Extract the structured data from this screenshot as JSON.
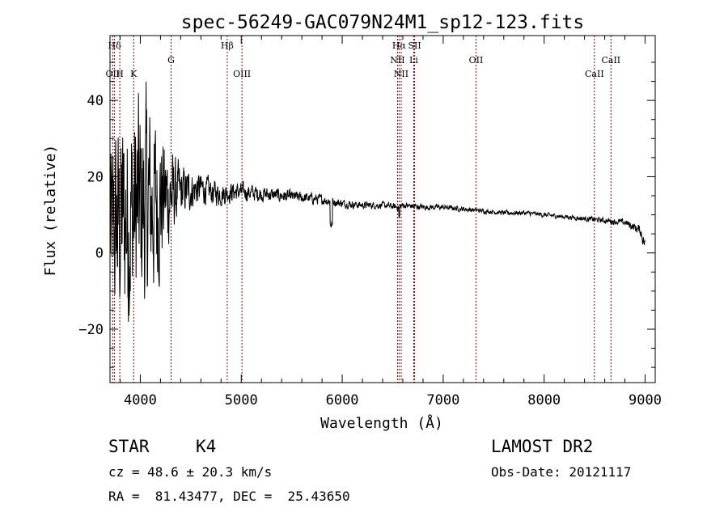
{
  "chart_data": {
    "type": "line",
    "title": "spec-56249-GAC079N24M1_sp12-123.fits",
    "xlabel": "Wavelength (Å)",
    "ylabel": "Flux (relative)",
    "xlim": [
      3700,
      9100
    ],
    "ylim": [
      -34,
      57
    ],
    "x_ticks": [
      4000,
      5000,
      6000,
      7000,
      8000,
      9000
    ],
    "y_ticks": [
      -20,
      0,
      20,
      40
    ],
    "x_tick_labels": [
      "4000",
      "5000",
      "6000",
      "7000",
      "8000",
      "9000"
    ],
    "y_tick_labels": [
      "−20",
      "0",
      "20",
      "40"
    ],
    "line_color": "#000000",
    "marker_color": "#8b0000",
    "spectrum_envelope": {
      "x": [
        3700,
        3800,
        3900,
        4000,
        4100,
        4200,
        4300,
        4400,
        4500,
        4600,
        4700,
        4800,
        4900,
        5000,
        5200,
        5400,
        5600,
        5800,
        5900,
        6000,
        6200,
        6400,
        6550,
        6600,
        6800,
        7000,
        7200,
        7400,
        7600,
        7800,
        8000,
        8200,
        8400,
        8600,
        8800,
        8950,
        9000
      ],
      "center": [
        5,
        8,
        10,
        12,
        13,
        14,
        15,
        16,
        16.5,
        17,
        16,
        15.5,
        16,
        16,
        15.5,
        15,
        14.5,
        14,
        13.5,
        13,
        12.5,
        12.5,
        12,
        12.5,
        12,
        12,
        11.5,
        11,
        10.5,
        10.5,
        10,
        9.5,
        9,
        8.5,
        8,
        6,
        2
      ],
      "amplitude": [
        35,
        42,
        45,
        45,
        40,
        30,
        18,
        10,
        8,
        6,
        5,
        4.5,
        4,
        3.5,
        3,
        2.5,
        2.2,
        2,
        1.8,
        1.6,
        1.4,
        1.3,
        1.3,
        1.2,
        1.1,
        1,
        1,
        0.9,
        0.9,
        1,
        0.9,
        0.9,
        1,
        1.1,
        1.3,
        2,
        3
      ]
    },
    "lines": [
      {
        "label": "Hδ",
        "x": 3745,
        "row": 0
      },
      {
        "label": "OII",
        "x": 3727,
        "row": 2
      },
      {
        "label": "H",
        "x": 3797,
        "row": 2
      },
      {
        "label": "K",
        "x": 3934,
        "row": 2
      },
      {
        "label": "G",
        "x": 4305,
        "row": 1
      },
      {
        "label": "Hβ",
        "x": 4861,
        "row": 0
      },
      {
        "label": "OIII",
        "x": 5007,
        "row": 2
      },
      {
        "label": "Hα",
        "x": 6563,
        "row": 0
      },
      {
        "label": "SII",
        "x": 6717,
        "row": 0
      },
      {
        "label": "NII",
        "x": 6548,
        "row": 1
      },
      {
        "label": "Li",
        "x": 6708,
        "row": 1
      },
      {
        "label": "NII",
        "x": 6584,
        "row": 2
      },
      {
        "label": "OII",
        "x": 7325,
        "row": 1
      },
      {
        "label": "CaII",
        "x": 8662,
        "row": 1
      },
      {
        "label": "CaII",
        "x": 8498,
        "row": 2
      }
    ],
    "grid": false,
    "legend": "none"
  },
  "info": {
    "class_label": "STAR",
    "subclass": "K4",
    "cz": "cz = 48.6 ± 20.3 km/s",
    "coords": "RA =  81.43477, DEC =  25.43650",
    "survey": "LAMOST DR2",
    "obs_date": "Obs-Date: 20121117"
  }
}
